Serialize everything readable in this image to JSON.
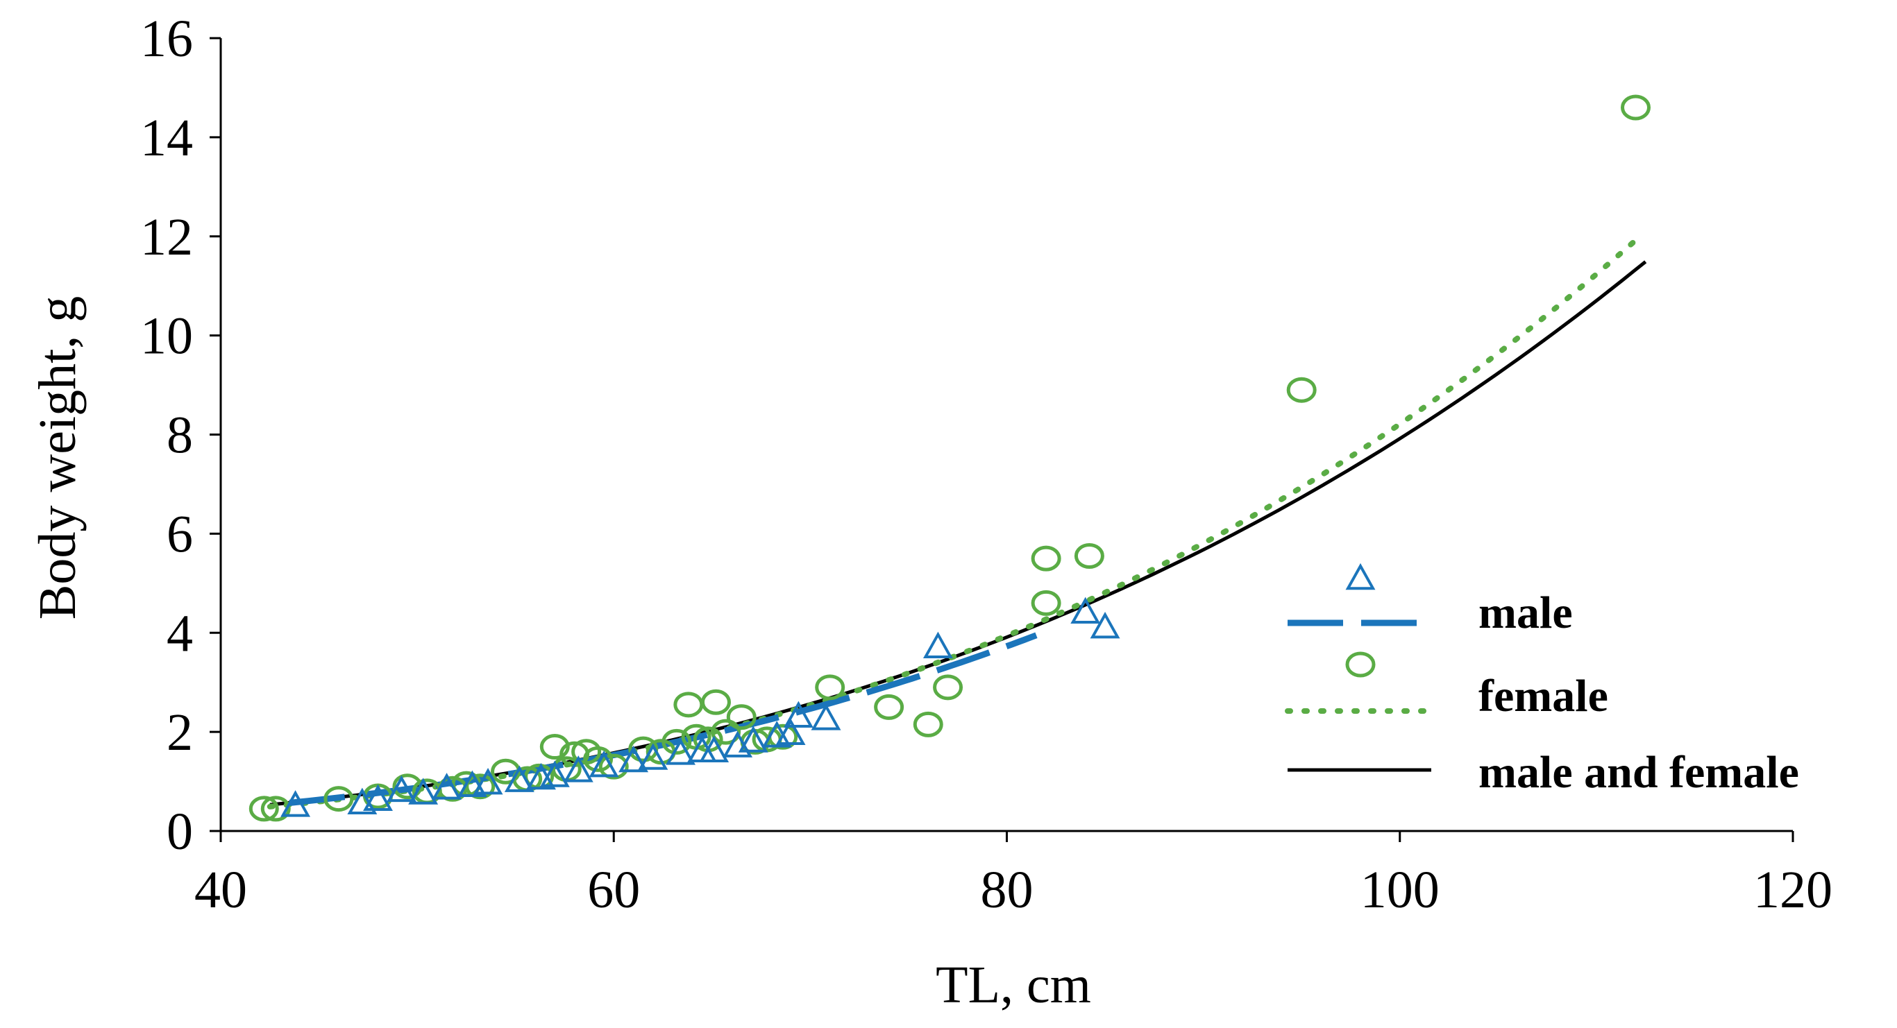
{
  "chart_data": {
    "type": "scatter",
    "title": "",
    "xlabel": "TL, cm",
    "ylabel": "Body weight, g",
    "xlim": [
      40,
      120
    ],
    "ylim": [
      0,
      16
    ],
    "xticks": [
      40,
      60,
      80,
      100,
      120
    ],
    "yticks": [
      0,
      2,
      4,
      6,
      8,
      10,
      12,
      14,
      16
    ],
    "grid": false,
    "legend_position": "right",
    "series": [
      {
        "name": "male",
        "kind": "points",
        "marker": "triangle",
        "color": "#1b75bb",
        "points": [
          [
            43.8,
            0.5
          ],
          [
            47.2,
            0.55
          ],
          [
            48.0,
            0.62
          ],
          [
            49.2,
            0.8
          ],
          [
            50.3,
            0.75
          ],
          [
            51.5,
            0.85
          ],
          [
            52.8,
            0.9
          ],
          [
            53.6,
            0.95
          ],
          [
            55.2,
            1.0
          ],
          [
            56.3,
            1.05
          ],
          [
            57.0,
            1.1
          ],
          [
            58.2,
            1.2
          ],
          [
            59.5,
            1.3
          ],
          [
            61.0,
            1.4
          ],
          [
            62.0,
            1.45
          ],
          [
            63.4,
            1.55
          ],
          [
            64.5,
            1.6
          ],
          [
            65.1,
            1.6
          ],
          [
            66.3,
            1.7
          ],
          [
            67.1,
            1.8
          ],
          [
            68.3,
            1.9
          ],
          [
            69.0,
            1.95
          ],
          [
            69.4,
            2.3
          ],
          [
            70.8,
            2.25
          ],
          [
            76.5,
            3.7
          ],
          [
            84.0,
            4.4
          ],
          [
            85.0,
            4.1
          ]
        ]
      },
      {
        "name": "female",
        "kind": "points",
        "marker": "circle",
        "color": "#5aac45",
        "points": [
          [
            42.2,
            0.45
          ],
          [
            42.8,
            0.45
          ],
          [
            46.0,
            0.65
          ],
          [
            48.0,
            0.7
          ],
          [
            49.5,
            0.9
          ],
          [
            50.5,
            0.8
          ],
          [
            51.8,
            0.85
          ],
          [
            52.5,
            0.95
          ],
          [
            53.2,
            0.9
          ],
          [
            54.5,
            1.2
          ],
          [
            55.6,
            1.05
          ],
          [
            56.2,
            1.1
          ],
          [
            57.0,
            1.7
          ],
          [
            57.6,
            1.25
          ],
          [
            58.0,
            1.55
          ],
          [
            58.6,
            1.6
          ],
          [
            59.2,
            1.45
          ],
          [
            60.0,
            1.3
          ],
          [
            61.5,
            1.65
          ],
          [
            62.4,
            1.6
          ],
          [
            63.2,
            1.8
          ],
          [
            63.8,
            2.55
          ],
          [
            64.2,
            1.9
          ],
          [
            64.8,
            1.85
          ],
          [
            65.2,
            2.6
          ],
          [
            65.7,
            2.0
          ],
          [
            66.5,
            2.3
          ],
          [
            67.2,
            1.8
          ],
          [
            67.8,
            1.85
          ],
          [
            68.6,
            1.9
          ],
          [
            71.0,
            2.9
          ],
          [
            74.0,
            2.5
          ],
          [
            76.0,
            2.15
          ],
          [
            77.0,
            2.9
          ],
          [
            82.0,
            5.5
          ],
          [
            82.0,
            4.6
          ],
          [
            84.2,
            5.55
          ],
          [
            95.0,
            8.9
          ],
          [
            112.0,
            14.6
          ]
        ]
      },
      {
        "name": "male",
        "kind": "fit",
        "style": "dashed",
        "color": "#1b75bb",
        "a": 4.91e-06,
        "b": 3.09,
        "x_range": [
          43.5,
          81.5
        ]
      },
      {
        "name": "female",
        "kind": "fit",
        "style": "dotted",
        "color": "#5aac45",
        "a": 2.16e-06,
        "b": 3.29,
        "x_range": [
          42.5,
          112
        ]
      },
      {
        "name": "male and female",
        "kind": "fit",
        "style": "solid",
        "color": "#000000",
        "a": 3.79e-06,
        "b": 3.16,
        "x_range": [
          42.5,
          112.5
        ]
      }
    ],
    "legend": [
      {
        "label": "male",
        "marker": "triangle",
        "line": "dashed",
        "color": "#1b75bb"
      },
      {
        "label": "female",
        "marker": "circle",
        "line": "dotted",
        "color": "#5aac45"
      },
      {
        "label": "male and female",
        "marker": "none",
        "line": "solid",
        "color": "#000000"
      }
    ]
  }
}
